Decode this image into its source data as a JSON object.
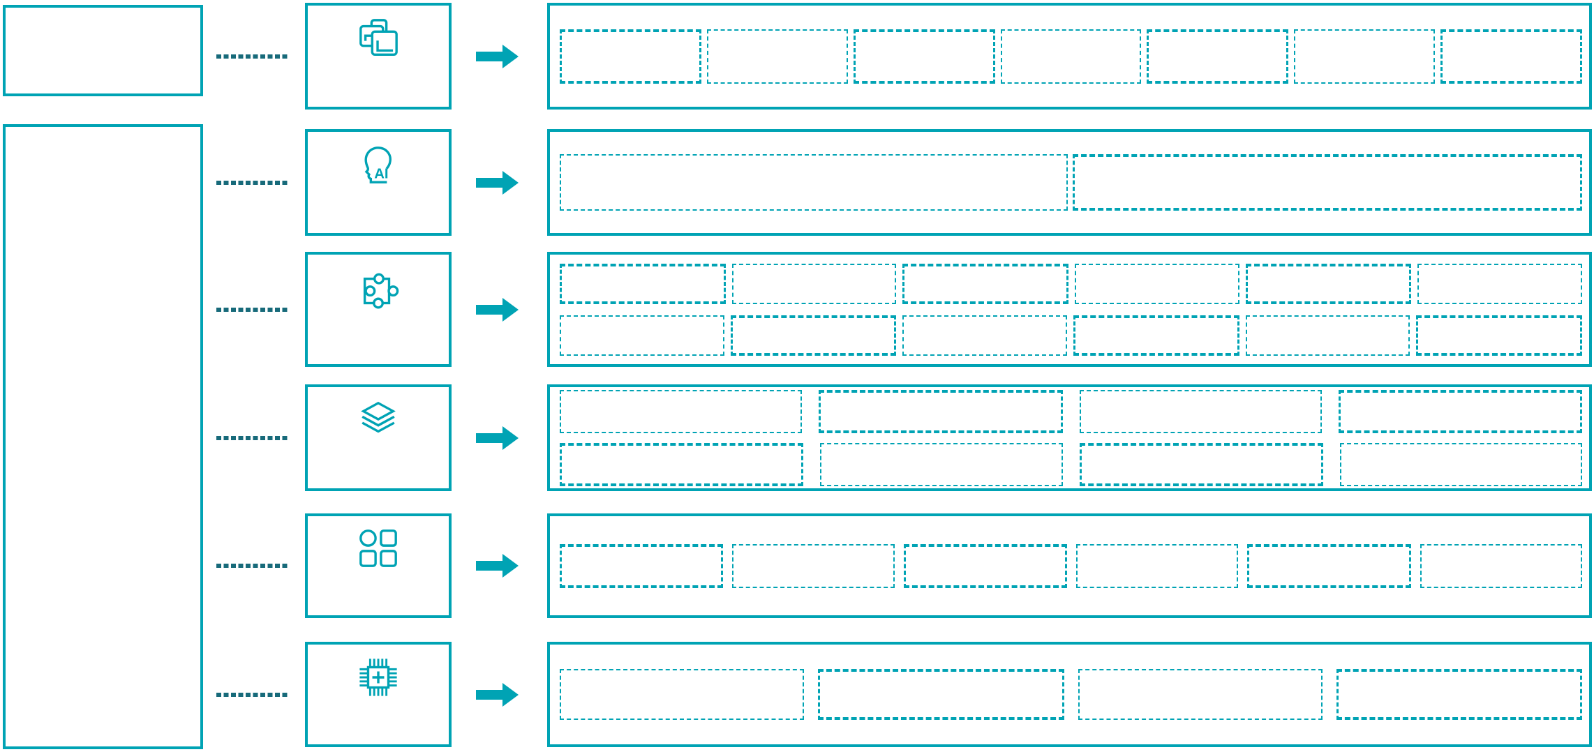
{
  "diagram": {
    "colors": {
      "accent": "#00a3b4",
      "connector_dash": "#176a7a",
      "background": "#ffffff"
    },
    "left_panel": {
      "top_box_text": "",
      "main_box_text": ""
    },
    "rows": [
      {
        "icon": "overlapping-frames-icon",
        "grid": {
          "rows": 1,
          "cols": 7
        },
        "cells": [
          "",
          "",
          "",
          "",
          "",
          "",
          ""
        ]
      },
      {
        "icon": "ai-head-icon",
        "icon_text": "AI",
        "grid": {
          "rows": 1,
          "cols": 2
        },
        "cells": [
          "",
          ""
        ]
      },
      {
        "icon": "puzzle-piece-icon",
        "grid": {
          "rows": 2,
          "cols": 6
        },
        "cells": [
          "",
          "",
          "",
          "",
          "",
          "",
          "",
          "",
          "",
          "",
          "",
          ""
        ]
      },
      {
        "icon": "layers-stack-icon",
        "grid": {
          "rows": 2,
          "cols": 4
        },
        "cells": [
          "",
          "",
          "",
          "",
          "",
          "",
          "",
          ""
        ]
      },
      {
        "icon": "apps-grid-icon",
        "grid": {
          "rows": 1,
          "cols": 6
        },
        "cells": [
          "",
          "",
          "",
          "",
          "",
          ""
        ]
      },
      {
        "icon": "chip-plus-icon",
        "grid": {
          "rows": 1,
          "cols": 4
        },
        "cells": [
          "",
          "",
          "",
          ""
        ]
      }
    ]
  }
}
